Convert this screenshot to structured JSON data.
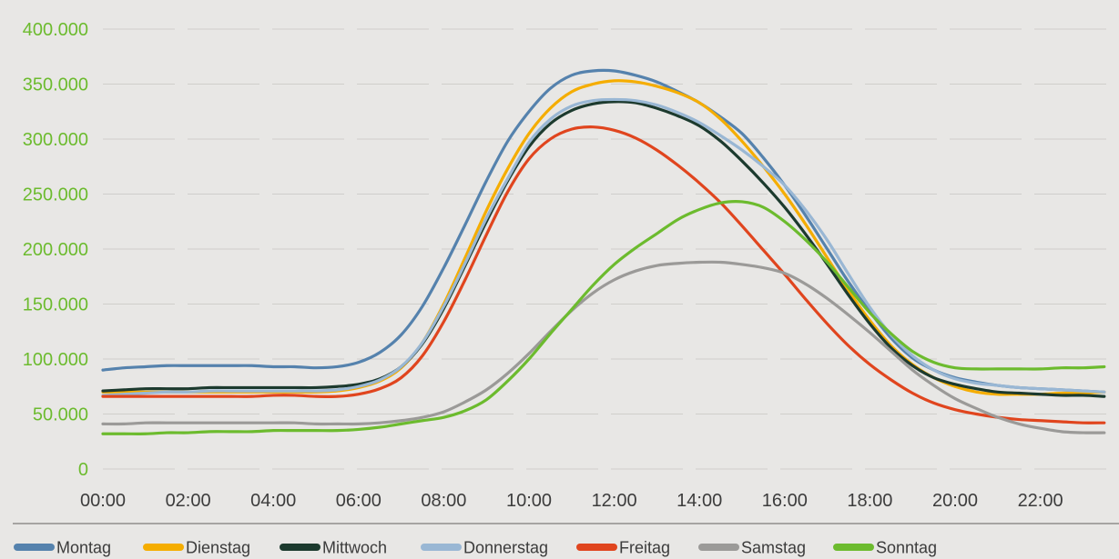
{
  "chart_data": {
    "type": "line",
    "title": "",
    "xlabel": "",
    "ylabel": "",
    "x": [
      "00:00",
      "00:30",
      "01:00",
      "01:30",
      "02:00",
      "02:30",
      "03:00",
      "03:30",
      "04:00",
      "04:30",
      "05:00",
      "05:30",
      "06:00",
      "06:30",
      "07:00",
      "07:30",
      "08:00",
      "08:30",
      "09:00",
      "09:30",
      "10:00",
      "10:30",
      "11:00",
      "11:30",
      "12:00",
      "12:30",
      "13:00",
      "13:30",
      "14:00",
      "14:30",
      "15:00",
      "15:30",
      "16:00",
      "16:30",
      "17:00",
      "17:30",
      "18:00",
      "18:30",
      "19:00",
      "19:30",
      "20:00",
      "20:30",
      "21:00",
      "21:30",
      "22:00",
      "22:30",
      "23:00",
      "23:30"
    ],
    "xticks": [
      "00:00",
      "02:00",
      "04:00",
      "06:00",
      "08:00",
      "10:00",
      "12:00",
      "14:00",
      "16:00",
      "18:00",
      "20:00",
      "22:00"
    ],
    "yticks": [
      "0",
      "50.000",
      "100.000",
      "150.000",
      "200.000",
      "250.000",
      "300.000",
      "350.000",
      "400.000"
    ],
    "ylim": [
      0,
      400000
    ],
    "grid": true,
    "legend_position": "bottom",
    "tick_color": "#6cbb2e",
    "x_tick_color": "#3c3c3c",
    "series": [
      {
        "name": "Montag",
        "color": "#5582ad",
        "values": [
          90000,
          92000,
          93000,
          94000,
          94000,
          94000,
          94000,
          94000,
          93000,
          93000,
          92000,
          93000,
          97000,
          106000,
          122000,
          148000,
          183000,
          222000,
          262000,
          298000,
          325000,
          346000,
          358000,
          362000,
          362000,
          358000,
          352000,
          343000,
          333000,
          320000,
          305000,
          283000,
          258000,
          230000,
          200000,
          170000,
          143000,
          119000,
          101000,
          90000,
          83000,
          79000,
          76000,
          74000,
          73000,
          72000,
          71000,
          70000
        ]
      },
      {
        "name": "Dienstag",
        "color": "#f5ad00",
        "values": [
          70000,
          70000,
          70000,
          70000,
          70000,
          70000,
          70000,
          70000,
          70000,
          70000,
          70000,
          71000,
          74000,
          80000,
          92000,
          115000,
          150000,
          192000,
          235000,
          273000,
          305000,
          328000,
          343000,
          350000,
          353000,
          352000,
          348000,
          342000,
          333000,
          318000,
          298000,
          275000,
          250000,
          222000,
          192000,
          162000,
          135000,
          112000,
          95000,
          83000,
          75000,
          70000,
          68000,
          68000,
          68000,
          69000,
          69000,
          70000
        ]
      },
      {
        "name": "Mittwoch",
        "color": "#1c3a2e",
        "values": [
          71000,
          72000,
          73000,
          73000,
          73000,
          74000,
          74000,
          74000,
          74000,
          74000,
          74000,
          75000,
          77000,
          82000,
          93000,
          114000,
          146000,
          185000,
          225000,
          262000,
          293000,
          314000,
          326000,
          332000,
          334000,
          333000,
          328000,
          321000,
          312000,
          298000,
          280000,
          260000,
          238000,
          213000,
          186000,
          158000,
          132000,
          110000,
          94000,
          83000,
          77000,
          73000,
          70000,
          69000,
          68000,
          67000,
          67000,
          66000
        ]
      },
      {
        "name": "Donnerstag",
        "color": "#99b7d4",
        "values": [
          67000,
          68000,
          69000,
          70000,
          70000,
          71000,
          71000,
          71000,
          71000,
          71000,
          71000,
          72000,
          75000,
          81000,
          93000,
          115000,
          148000,
          187000,
          228000,
          264000,
          297000,
          318000,
          330000,
          335000,
          336000,
          335000,
          331000,
          324000,
          315000,
          303000,
          290000,
          275000,
          258000,
          235000,
          208000,
          177000,
          147000,
          122000,
          103000,
          90000,
          82000,
          78000,
          76000,
          74000,
          73000,
          72000,
          71000,
          70000
        ]
      },
      {
        "name": "Freitag",
        "color": "#e0451e",
        "values": [
          66000,
          66000,
          66000,
          66000,
          66000,
          66000,
          66000,
          66000,
          67000,
          67000,
          66000,
          66000,
          68000,
          73000,
          83000,
          103000,
          134000,
          172000,
          213000,
          252000,
          282000,
          300000,
          309000,
          311000,
          308000,
          301000,
          290000,
          276000,
          260000,
          242000,
          221000,
          199000,
          177000,
          154000,
          132000,
          112000,
          95000,
          81000,
          69000,
          60000,
          54000,
          50000,
          47000,
          45000,
          44000,
          43000,
          42000,
          42000
        ]
      },
      {
        "name": "Samstag",
        "color": "#9b9a98",
        "values": [
          41000,
          41000,
          42000,
          42000,
          42000,
          42000,
          42000,
          42000,
          42000,
          42000,
          41000,
          41000,
          41000,
          42000,
          44000,
          47000,
          52000,
          61000,
          72000,
          87000,
          105000,
          125000,
          144000,
          160000,
          172000,
          180000,
          185000,
          187000,
          188000,
          188000,
          186000,
          183000,
          178000,
          168000,
          155000,
          140000,
          124000,
          107000,
          90000,
          76000,
          64000,
          55000,
          47000,
          41000,
          37000,
          34000,
          33000,
          33000
        ]
      },
      {
        "name": "Sonntag",
        "color": "#6cbb2e",
        "values": [
          32000,
          32000,
          32000,
          33000,
          33000,
          34000,
          34000,
          34000,
          35000,
          35000,
          35000,
          35000,
          36000,
          38000,
          41000,
          44000,
          47000,
          53000,
          63000,
          80000,
          100000,
          123000,
          145000,
          167000,
          186000,
          201000,
          214000,
          227000,
          236000,
          242000,
          243000,
          238000,
          225000,
          208000,
          188000,
          165000,
          142000,
          123000,
          107000,
          97000,
          92000,
          91000,
          91000,
          91000,
          91000,
          92000,
          92000,
          93000
        ]
      }
    ]
  }
}
